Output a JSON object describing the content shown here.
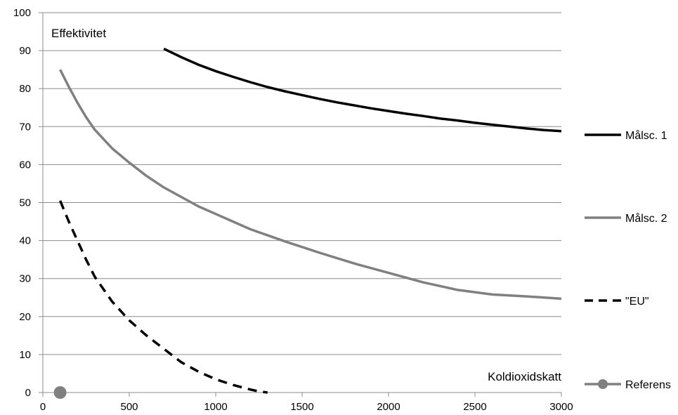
{
  "chart_data": {
    "type": "line",
    "xlabel": "Koldioxidskatt",
    "ylabel": "Effektivitet",
    "xlim": [
      0,
      3000
    ],
    "ylim": [
      0,
      100
    ],
    "x_ticks": [
      "0",
      "500",
      "1000",
      "1500",
      "2000",
      "2500",
      "3000"
    ],
    "y_ticks": [
      "0",
      "10",
      "20",
      "30",
      "40",
      "50",
      "60",
      "70",
      "80",
      "90",
      "100"
    ],
    "grid": "horizontal",
    "legend_position": "right",
    "series": [
      {
        "name": "Målsc. 1",
        "color": "#000000",
        "style": "solid",
        "x": [
          700,
          800,
          900,
          1000,
          1100,
          1200,
          1300,
          1400,
          1500,
          1600,
          1700,
          1800,
          1900,
          2000,
          2100,
          2200,
          2300,
          2400,
          2500,
          2600,
          2700,
          2800,
          2900,
          3000
        ],
        "y": [
          90.5,
          88.3,
          86.3,
          84.6,
          83.1,
          81.7,
          80.4,
          79.3,
          78.3,
          77.3,
          76.4,
          75.6,
          74.8,
          74.1,
          73.4,
          72.8,
          72.1,
          71.6,
          71.0,
          70.5,
          70.0,
          69.5,
          69.1,
          68.8
        ]
      },
      {
        "name": "Målsc. 2",
        "color": "#808080",
        "style": "solid",
        "x": [
          100,
          150,
          200,
          250,
          300,
          400,
          500,
          600,
          700,
          800,
          900,
          1000,
          1200,
          1400,
          1600,
          1800,
          2000,
          2200,
          2400,
          2600,
          2800,
          3000
        ],
        "y": [
          85.0,
          80.5,
          76.3,
          72.5,
          69.2,
          64.3,
          60.5,
          57.0,
          54.0,
          51.5,
          49.0,
          47.0,
          43.0,
          39.8,
          36.8,
          34.0,
          31.5,
          29.0,
          27.0,
          25.8,
          25.3,
          24.7
        ]
      },
      {
        "name": "\"EU\"",
        "color": "#000000",
        "style": "dashed",
        "x": [
          100,
          150,
          200,
          250,
          300,
          400,
          500,
          600,
          700,
          800,
          900,
          1000,
          1100,
          1200,
          1250,
          1300
        ],
        "y": [
          50.5,
          45.0,
          40.0,
          35.0,
          30.5,
          24.0,
          19.0,
          15.0,
          11.5,
          8.0,
          5.5,
          3.5,
          2.0,
          0.8,
          0.3,
          0.0
        ]
      },
      {
        "name": "Referens",
        "color": "#808080",
        "style": "marker",
        "x": [
          100
        ],
        "y": [
          0
        ]
      }
    ]
  }
}
